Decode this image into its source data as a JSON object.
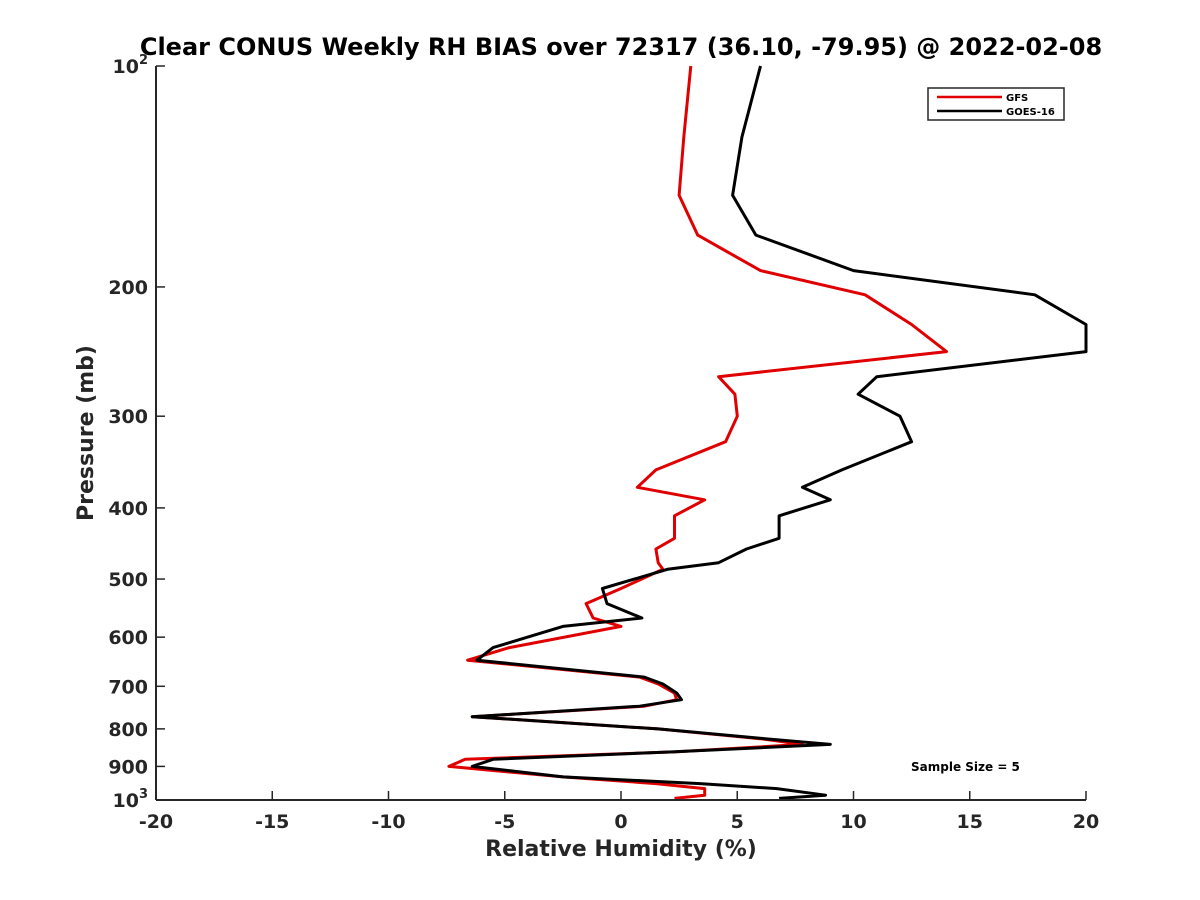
{
  "chart_data": {
    "type": "line",
    "title": "Clear CONUS Weekly RH BIAS over 72317 (36.10, -79.95) @ 2022-02-08",
    "xlabel": "Relative Humidity (%)",
    "ylabel": "Pressure (mb)",
    "xlim": [
      -20,
      20
    ],
    "ylim": [
      100,
      1000
    ],
    "y_scale": "log",
    "y_reversed": true,
    "grid": false,
    "x_ticks": [
      -20,
      -15,
      -10,
      -5,
      0,
      5,
      10,
      15,
      20
    ],
    "x_tick_labels": [
      "-20",
      "-15",
      "-10",
      "-5",
      "0",
      "5",
      "10",
      "15",
      "20"
    ],
    "y_ticks": [
      {
        "value": 100,
        "base": "10",
        "exp": "2"
      },
      {
        "value": 200,
        "label": "200"
      },
      {
        "value": 300,
        "label": "300"
      },
      {
        "value": 400,
        "label": "400"
      },
      {
        "value": 500,
        "label": "500"
      },
      {
        "value": 600,
        "label": "600"
      },
      {
        "value": 700,
        "label": "700"
      },
      {
        "value": 800,
        "label": "800"
      },
      {
        "value": 900,
        "label": "900"
      },
      {
        "value": 1000,
        "base": "10",
        "exp": "3"
      }
    ],
    "legend_position": "top-right",
    "annotation": "Sample Size = 5",
    "series": [
      {
        "name": "GFS",
        "color": "#e00000",
        "points": [
          [
            3.0,
            100
          ],
          [
            2.7,
            125
          ],
          [
            2.5,
            150
          ],
          [
            3.3,
            170
          ],
          [
            6.0,
            190
          ],
          [
            10.5,
            205
          ],
          [
            12.5,
            225
          ],
          [
            14.0,
            245
          ],
          [
            4.2,
            265
          ],
          [
            4.9,
            280
          ],
          [
            5.0,
            300
          ],
          [
            4.5,
            325
          ],
          [
            1.5,
            355
          ],
          [
            0.7,
            375
          ],
          [
            3.6,
            390
          ],
          [
            2.3,
            410
          ],
          [
            2.3,
            440
          ],
          [
            1.5,
            455
          ],
          [
            1.6,
            475
          ],
          [
            1.8,
            485
          ],
          [
            0.0,
            515
          ],
          [
            -1.5,
            540
          ],
          [
            -1.2,
            565
          ],
          [
            0.0,
            580
          ],
          [
            -4.8,
            620
          ],
          [
            -6.6,
            645
          ],
          [
            0.8,
            680
          ],
          [
            1.6,
            695
          ],
          [
            2.3,
            715
          ],
          [
            2.4,
            730
          ],
          [
            1.0,
            745
          ],
          [
            -6.4,
            770
          ],
          [
            1.6,
            800
          ],
          [
            6.0,
            825
          ],
          [
            7.8,
            840
          ],
          [
            2.3,
            860
          ],
          [
            -6.7,
            880
          ],
          [
            -7.4,
            900
          ],
          [
            -2.5,
            930
          ],
          [
            1.5,
            950
          ],
          [
            3.6,
            965
          ],
          [
            3.6,
            985
          ],
          [
            2.3,
            995
          ]
        ]
      },
      {
        "name": "GOES-16",
        "color": "#000000",
        "points": [
          [
            6.0,
            100
          ],
          [
            5.2,
            125
          ],
          [
            4.8,
            150
          ],
          [
            5.8,
            170
          ],
          [
            10.0,
            190
          ],
          [
            17.8,
            205
          ],
          [
            20.0,
            225
          ],
          [
            20.0,
            245
          ],
          [
            11.0,
            265
          ],
          [
            10.2,
            280
          ],
          [
            12.0,
            300
          ],
          [
            12.5,
            325
          ],
          [
            9.5,
            355
          ],
          [
            7.8,
            375
          ],
          [
            9.0,
            390
          ],
          [
            6.8,
            410
          ],
          [
            6.8,
            440
          ],
          [
            5.4,
            455
          ],
          [
            4.2,
            475
          ],
          [
            2.0,
            485
          ],
          [
            -0.8,
            515
          ],
          [
            -0.6,
            540
          ],
          [
            0.9,
            565
          ],
          [
            -2.5,
            580
          ],
          [
            -5.5,
            620
          ],
          [
            -6.2,
            645
          ],
          [
            1.0,
            680
          ],
          [
            1.8,
            695
          ],
          [
            2.4,
            715
          ],
          [
            2.6,
            730
          ],
          [
            0.8,
            745
          ],
          [
            -6.4,
            770
          ],
          [
            1.6,
            800
          ],
          [
            6.2,
            825
          ],
          [
            9.0,
            840
          ],
          [
            2.2,
            860
          ],
          [
            -5.5,
            880
          ],
          [
            -6.4,
            900
          ],
          [
            -2.5,
            930
          ],
          [
            3.4,
            950
          ],
          [
            6.7,
            965
          ],
          [
            8.8,
            985
          ],
          [
            6.8,
            995
          ]
        ]
      }
    ]
  }
}
